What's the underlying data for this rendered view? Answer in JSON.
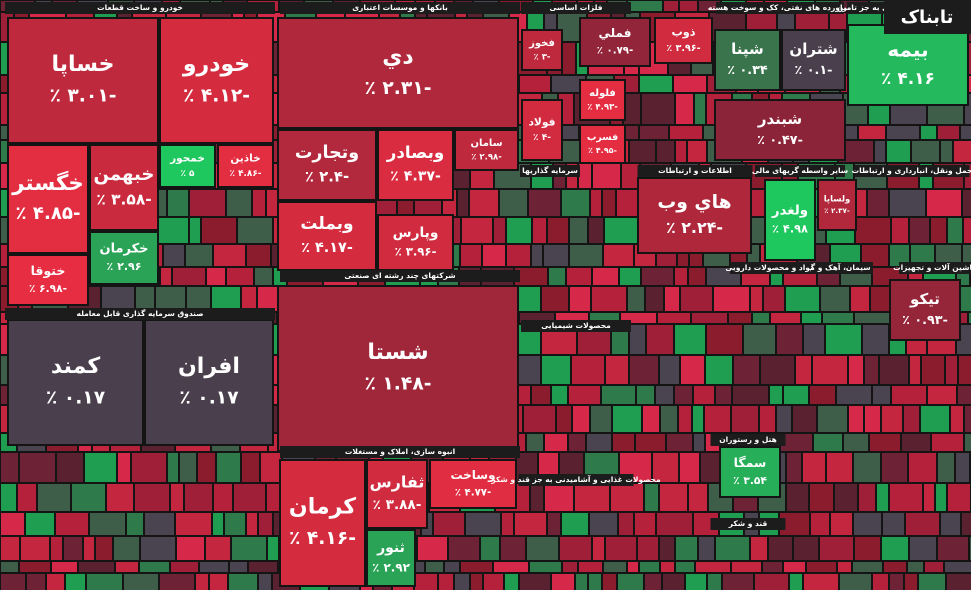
{
  "chart_data": {
    "type": "treemap",
    "watermark": "تابناک",
    "groups": [
      {
        "name": "خودرو و ساخت قطعات",
        "labels": [
          "خساپا",
          "خودرو",
          "خگستر",
          "ختوقا",
          "خبهمن",
          "خکرمان",
          "خمحور",
          "خاذین"
        ],
        "values": [
          -3.01,
          -4.12,
          -4.85,
          -6.98,
          -3.58,
          2.96,
          5,
          -4.86
        ],
        "value_labels": [
          "-۳.۰۱ ٪",
          "-۴.۱۲ ٪",
          "-۴.۸۵ ٪",
          "-۶.۹۸ ٪",
          "-۳.۵۸ ٪",
          "۲.۹۶ ٪",
          "۵ ٪",
          "-۴.۸۶ ٪"
        ]
      },
      {
        "name": "بانکها و موسسات اعتباری",
        "labels": [
          "دي",
          "وتجارت",
          "وبصادر",
          "سامان",
          "وبملت",
          "وپارس"
        ],
        "values": [
          -2.31,
          -2.4,
          -4.37,
          -2.98,
          -4.17,
          -3.96
        ],
        "value_labels": [
          "-۲.۳۱ ٪",
          "-۲.۴ ٪",
          "-۴.۳۷ ٪",
          "-۲.۹۸ ٪",
          "-۴.۱۷ ٪",
          "-۳.۹۶ ٪"
        ]
      },
      {
        "name": "شرکتهای چند رشته ای صنعتی",
        "labels": [
          "شستا"
        ],
        "values": [
          -1.48
        ],
        "value_labels": [
          "-۱.۴۸ ٪"
        ]
      },
      {
        "name": "صندوق سرمایه گذاری قابل معامله",
        "labels": [
          "کمند",
          "افران"
        ],
        "values": [
          0.17,
          0.17
        ],
        "value_labels": [
          "۰.۱۷ ٪",
          "۰.۱۷ ٪"
        ]
      },
      {
        "name": "انبوه سازی، املاک و مستغلات",
        "labels": [
          "کرمان",
          "ثفارس",
          "وساخت",
          "ثنور"
        ],
        "values": [
          -4.16,
          -3.88,
          -4.77,
          2.92
        ],
        "value_labels": [
          "-۴.۱۶ ٪",
          "-۳.۸۸ ٪",
          "-۴.۷۷ ٪",
          "۲.۹۲ ٪"
        ]
      },
      {
        "name": "فلزات اساسی",
        "labels": [
          "فملي",
          "فولاد",
          "فخوز",
          "فلوله",
          "فسرب",
          "ذوب"
        ],
        "values": [
          -0.79,
          -4,
          -3,
          -4.93,
          -4.95,
          -3.96
        ],
        "value_labels": [
          "-۰.۷۹ ٪",
          "-۴ ٪",
          "-۳ ٪",
          "-۴.۹۳ ٪",
          "-۴.۹۵ ٪",
          "-۳.۹۶ ٪"
        ]
      },
      {
        "name": "فراورده های نفتی، کک و سوخت هسته",
        "labels": [
          "شپنا",
          "شتران",
          "شبندر"
        ],
        "values": [
          0.34,
          -0.1,
          -0.47
        ],
        "value_labels": [
          "۰.۳۴ ٪",
          "-۰.۱ ٪",
          "-۰.۴۷ ٪"
        ]
      },
      {
        "name": "بیمه و صندوق بازنشستگی به جز تامین",
        "labels": [
          "بیمه"
        ],
        "values": [
          4.16
        ],
        "value_labels": [
          "۴.۱۶ ٪"
        ]
      },
      {
        "name": "اطلاعات و ارتباطات",
        "labels": [
          "هاي وب"
        ],
        "values": [
          -2.24
        ],
        "value_labels": [
          "-۲.۲۴ ٪"
        ]
      },
      {
        "name": "سایر واسطه گریهای مالی",
        "labels": [
          "ولساپا",
          "ولغدر"
        ],
        "values": [
          -2.37,
          4.98
        ],
        "value_labels": [
          "-۲.۳۷ ٪",
          "۴.۹۸ ٪"
        ]
      },
      {
        "name": "حمل ونقل، انبارداری و ارتباطات"
      },
      {
        "name": "سرمایه گذاریها"
      },
      {
        "name": "سیمان، آهک و گچ"
      },
      {
        "name": "ماشین آلات و تجهیزات",
        "labels": [
          "تیکو"
        ],
        "values": [
          -0.93
        ],
        "value_labels": [
          "-۰.۹۳ ٪"
        ]
      },
      {
        "name": "محصولات شیمیایی"
      },
      {
        "name": "هتل و رستوران",
        "labels": [
          "سمگا"
        ],
        "values": [
          3.54
        ],
        "value_labels": [
          "۳.۵۴ ٪"
        ]
      },
      {
        "name": "قند و شکر"
      },
      {
        "name": "محصولات غذایی و آشامیدنی به جز قند و شکر"
      },
      {
        "name": "مواد و محصولات دارویی"
      }
    ]
  }
}
